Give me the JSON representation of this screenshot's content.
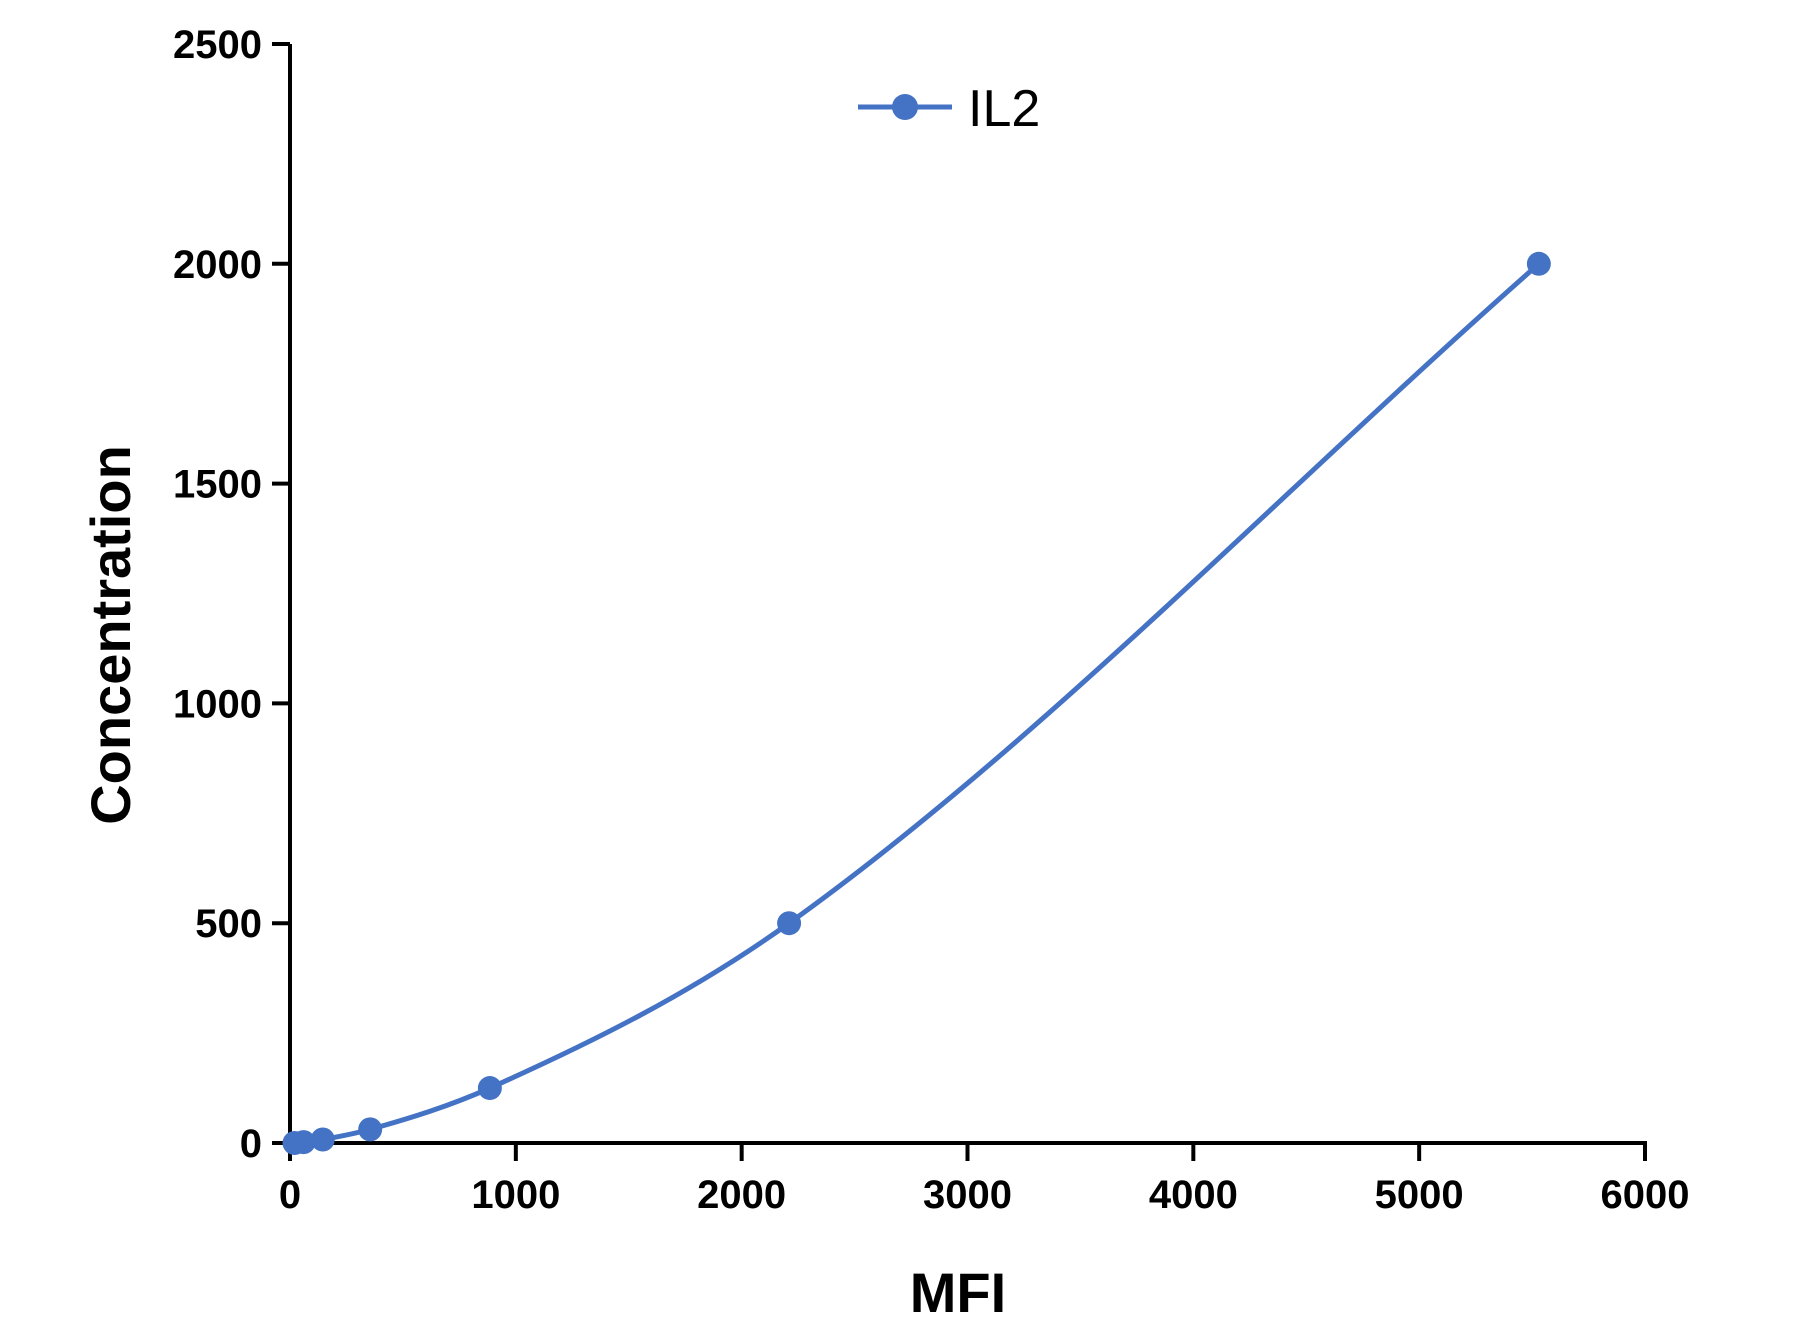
{
  "chart_data": {
    "type": "line",
    "title": "",
    "xlabel": "MFI",
    "ylabel": "Concentration",
    "xlim": [
      0,
      6000
    ],
    "ylim": [
      0,
      2500
    ],
    "xticks": [
      0,
      1000,
      2000,
      3000,
      4000,
      5000,
      6000
    ],
    "yticks": [
      0,
      500,
      1000,
      1500,
      2000,
      2500
    ],
    "xtick_labels": [
      "0",
      "1000",
      "2000",
      "3000",
      "4000",
      "5000",
      "6000"
    ],
    "ytick_labels": [
      "0",
      "500",
      "1000",
      "1500",
      "2000",
      "2500"
    ],
    "grid": false,
    "legend": {
      "placement": "top-center"
    },
    "series": [
      {
        "name": "IL2",
        "color": "#4472C4",
        "marker": "circle",
        "smooth": true,
        "points": [
          {
            "x": 20,
            "y": 0
          },
          {
            "x": 60,
            "y": 2
          },
          {
            "x": 145,
            "y": 8
          },
          {
            "x": 355,
            "y": 31
          },
          {
            "x": 885,
            "y": 125
          },
          {
            "x": 2210,
            "y": 500
          },
          {
            "x": 5530,
            "y": 2000
          }
        ]
      }
    ]
  }
}
